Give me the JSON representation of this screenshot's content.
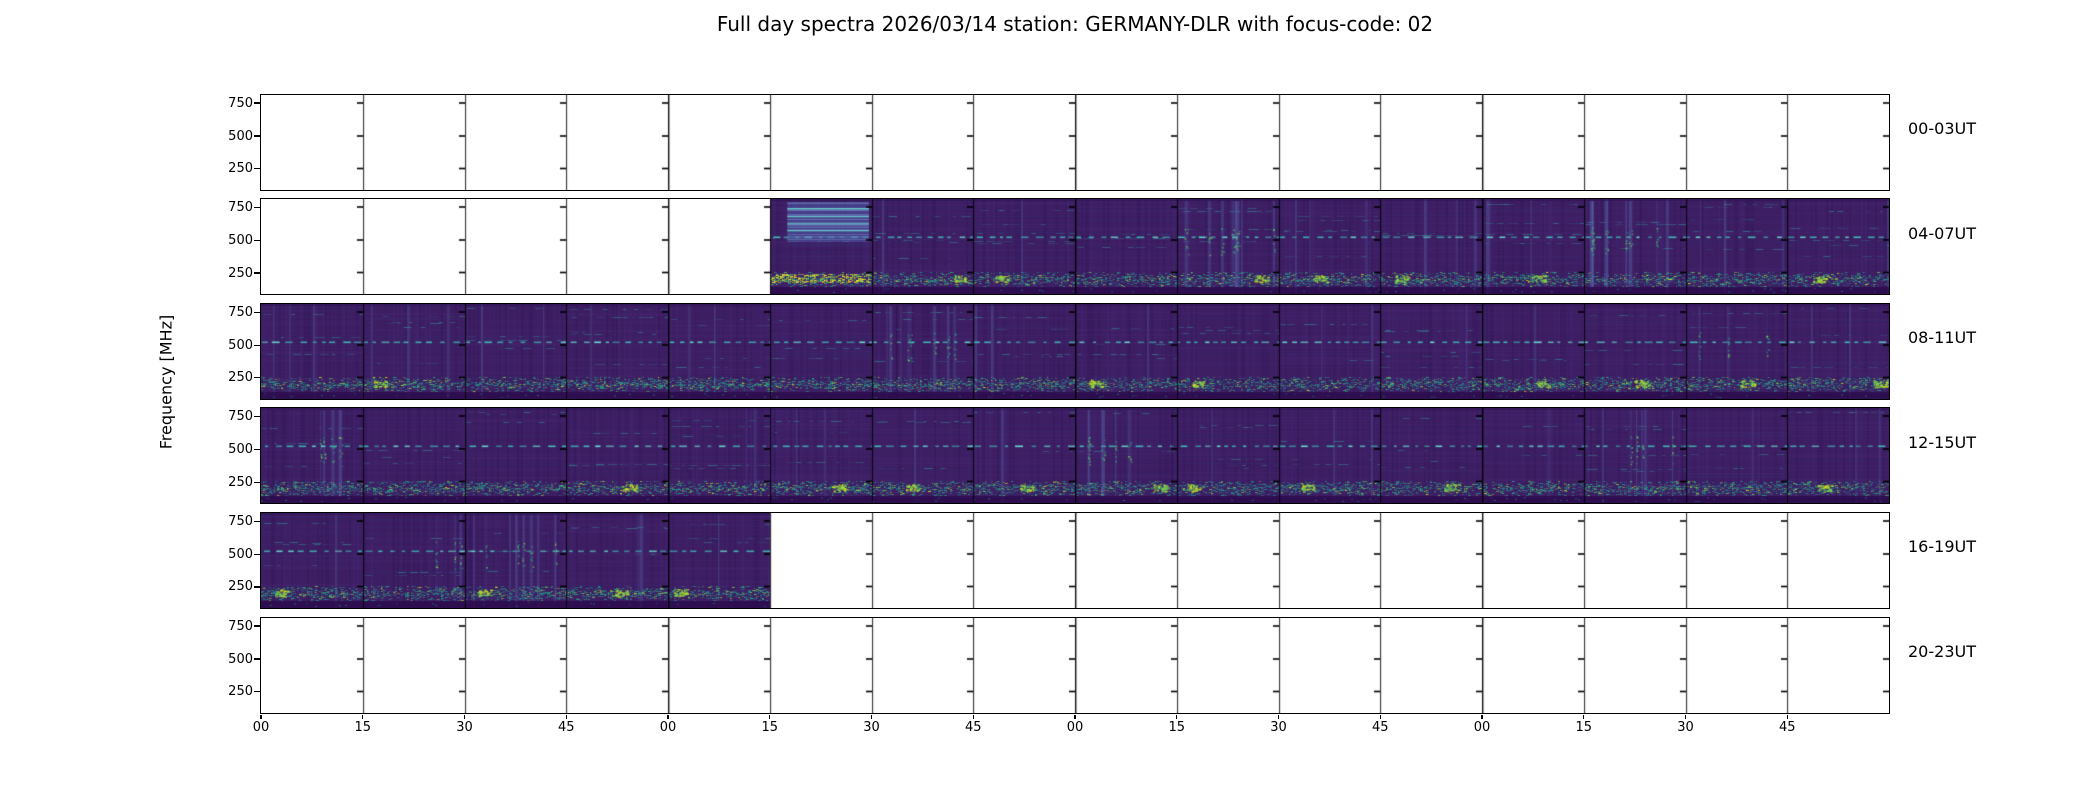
{
  "title": "Full day spectra 2026/03/14 station: GERMANY-DLR with focus-code: 02",
  "station": "GERMANY-DLR",
  "date": "2026/03/14",
  "focus_code": "02",
  "chart_data": {
    "type": "heatmap",
    "title": "Full day spectra 2026/03/14 station: GERMANY-DLR with focus-code: 02",
    "ylabel": "Frequency [MHz]",
    "y_tick_labels": [
      "750",
      "500",
      "250"
    ],
    "y_tick_values": [
      750,
      500,
      250
    ],
    "x_tick_labels": [
      "00",
      "15",
      "30",
      "45",
      "00",
      "15",
      "30",
      "45",
      "00",
      "15",
      "30",
      "45",
      "00",
      "15",
      "30",
      "45"
    ],
    "segments_per_row": 16,
    "segment_minutes": 15,
    "hours_per_row": 4,
    "colormap": "viridis",
    "legend_position": "none",
    "grid": "sub-panel dividers every 15 minutes",
    "rows": [
      {
        "label": "00-03UT",
        "filled_segments": [],
        "burst_segments": [],
        "block_segments": []
      },
      {
        "label": "04-07UT",
        "filled_segments": [
          5,
          6,
          7,
          8,
          9,
          10,
          11,
          12,
          13,
          14,
          15
        ],
        "burst_segments": [
          9,
          13
        ],
        "block_segments": [
          5
        ]
      },
      {
        "label": "08-11UT",
        "filled_segments": [
          0,
          1,
          2,
          3,
          4,
          5,
          6,
          7,
          8,
          9,
          10,
          11,
          12,
          13,
          14,
          15
        ],
        "burst_segments": [
          6,
          14
        ],
        "block_segments": []
      },
      {
        "label": "12-15UT",
        "filled_segments": [
          0,
          1,
          2,
          3,
          4,
          5,
          6,
          7,
          8,
          9,
          10,
          11,
          12,
          13,
          14,
          15
        ],
        "burst_segments": [
          0,
          8,
          13
        ],
        "block_segments": []
      },
      {
        "label": "16-19UT",
        "filled_segments": [
          0,
          1,
          2,
          3,
          4
        ],
        "burst_segments": [
          1,
          2
        ],
        "block_segments": []
      },
      {
        "label": "20-23UT",
        "filled_segments": [],
        "burst_segments": [],
        "block_segments": []
      }
    ],
    "palette": {
      "background": "#ffffff",
      "axis": "#000000",
      "base": "#3d1e63",
      "base_dark": "#2c0f50",
      "base_light": "#4a2d7d",
      "scan_light": "#51307f",
      "scan_blue": "#2d3c7c",
      "light_column": "#5b6ab0",
      "dash_teal": "#3fbfb8",
      "dash_bright": "#67e0d0",
      "streak_teal": "#2fa8a0",
      "band_teal": "#26ad81",
      "band_teal2": "#21918c",
      "band_green": "#7ad151",
      "band_yellow": "#fde725",
      "band_yellow2": "#d2e21b",
      "bottom_dark": "#2a0a4a",
      "block_blue": "#4f5fae",
      "block_line": "#7e9fd8"
    }
  }
}
